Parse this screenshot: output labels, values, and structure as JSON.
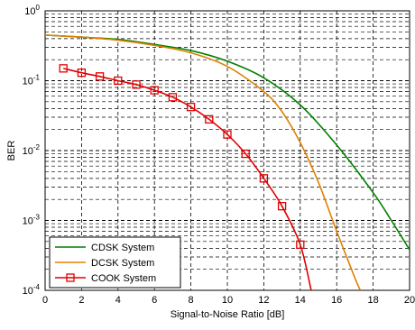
{
  "chart_data": {
    "type": "line",
    "xlabel": "Signal-to-Noise Ratio [dB]",
    "ylabel": "BER",
    "xlim": [
      0,
      20
    ],
    "ylim": [
      0.0001,
      1
    ],
    "yscale": "log",
    "grid": true,
    "legend_position": "bottom-left",
    "x_ticks": [
      "0",
      "2",
      "4",
      "6",
      "8",
      "10",
      "12",
      "14",
      "16",
      "18",
      "20"
    ],
    "y_ticks": [
      {
        "base": "10",
        "exp": "0"
      },
      {
        "base": "10",
        "exp": "-1"
      },
      {
        "base": "10",
        "exp": "-2"
      },
      {
        "base": "10",
        "exp": "-3"
      },
      {
        "base": "10",
        "exp": "-4"
      }
    ],
    "series": [
      {
        "name": "CDSK System",
        "color": "#008000",
        "marker": "none",
        "x": [
          0,
          2,
          4,
          6,
          8,
          10,
          12,
          14,
          16,
          18,
          19,
          20
        ],
        "y": [
          0.45,
          0.42,
          0.39,
          0.33,
          0.27,
          0.19,
          0.11,
          0.045,
          0.012,
          0.0025,
          0.001,
          0.00038
        ]
      },
      {
        "name": "DCSK System",
        "color": "#e08000",
        "marker": "none",
        "x": [
          0,
          2,
          4,
          6,
          8,
          10,
          12,
          13,
          14,
          15,
          16,
          17,
          17.3
        ],
        "y": [
          0.45,
          0.42,
          0.38,
          0.32,
          0.25,
          0.16,
          0.07,
          0.036,
          0.013,
          0.0035,
          0.0007,
          0.00015,
          0.0001
        ]
      },
      {
        "name": "COOK System",
        "color": "#e00000",
        "marker": "square",
        "x": [
          1,
          2,
          3,
          4,
          5,
          6,
          7,
          8,
          9,
          10,
          11,
          12,
          13,
          14,
          14.6
        ],
        "y": [
          0.15,
          0.13,
          0.115,
          0.1,
          0.088,
          0.073,
          0.058,
          0.042,
          0.028,
          0.017,
          0.009,
          0.004,
          0.0016,
          0.00045,
          0.0001
        ]
      }
    ]
  }
}
